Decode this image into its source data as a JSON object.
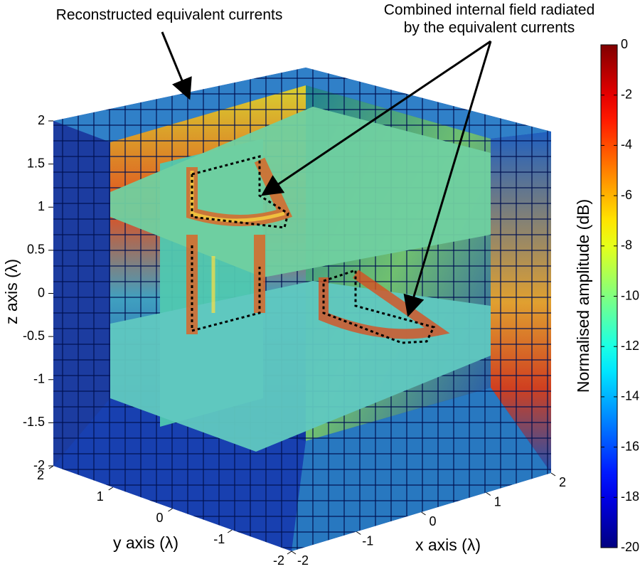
{
  "chart_data": {
    "type": "volume-slices",
    "annotations": [
      "Reconstructed equivalent currents",
      "Combined internal field radiated",
      "by the equivalent currents"
    ],
    "xlabel": "x axis (λ)",
    "ylabel": "y axis (λ)",
    "zlabel": "z axis (λ)",
    "xlim": [
      -2,
      2
    ],
    "xticks": [
      -2,
      -1,
      0,
      1,
      2
    ],
    "ylim": [
      -2,
      2
    ],
    "yticks": [
      -2,
      -1,
      0,
      1,
      2
    ],
    "zlim": [
      -2,
      2
    ],
    "zticks": [
      -2,
      -1.5,
      -1,
      -0.5,
      0,
      0.5,
      1,
      1.5,
      2
    ],
    "colorbar": {
      "label": "Normalised amplitude (dB)",
      "colormap": "jet",
      "clim": [
        -20,
        0
      ],
      "ticks": [
        0,
        -2,
        -4,
        -6,
        -8,
        -10,
        -12,
        -14,
        -16,
        -18,
        -20
      ]
    }
  }
}
